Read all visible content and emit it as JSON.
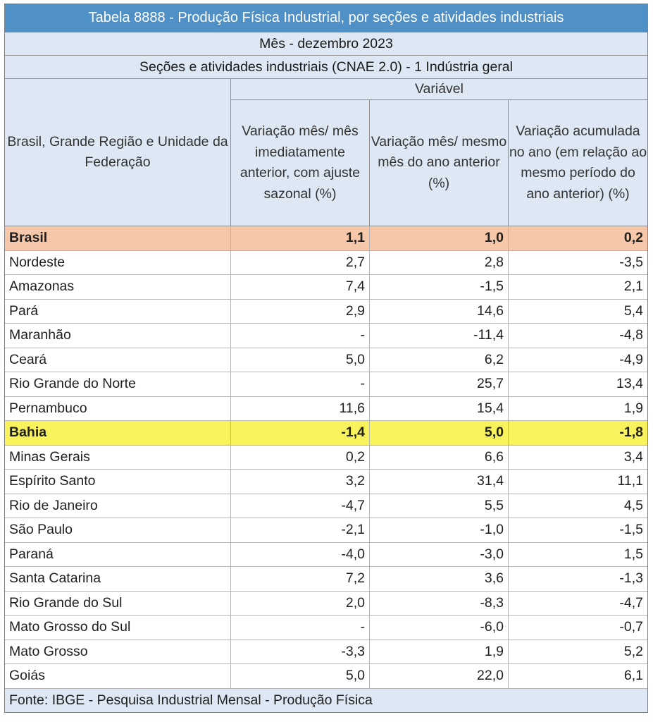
{
  "table": {
    "title": "Tabela 8888 - Produção Física Industrial, por seções e atividades industriais",
    "mes": "Mês - dezembro 2023",
    "secoes": "Seções e atividades industriais (CNAE 2.0) - 1 Indústria geral",
    "row_header": "Brasil, Grande Região e Unidade da Federação",
    "variable_header": "Variável",
    "col_headers": [
      "Variação mês/ mês imediatamente anterior, com ajuste sazonal (%)",
      "Variação mês/ mesmo mês do ano anterior (%)",
      "Variação acumulada no ano (em relação ao mesmo período do ano anterior) (%)"
    ],
    "footer": "Fonte: IBGE - Pesquisa Industrial Mensal - Produção Física"
  },
  "chart_data": {
    "type": "table",
    "title": "Tabela 8888 - Produção Física Industrial, por seções e atividades industriais",
    "columns": [
      "Brasil, Grande Região e Unidade da Federação",
      "Variação mês/ mês imediatamente anterior, com ajuste sazonal (%)",
      "Variação mês/ mesmo mês do ano anterior (%)",
      "Variação acumulada no ano (em relação ao mesmo período do ano anterior) (%)"
    ],
    "rows": [
      {
        "name": "Brasil",
        "v1": "1,1",
        "v2": "1,0",
        "v3": "0,2"
      },
      {
        "name": "Nordeste",
        "v1": "2,7",
        "v2": "2,8",
        "v3": "-3,5"
      },
      {
        "name": "Amazonas",
        "v1": "7,4",
        "v2": "-1,5",
        "v3": "2,1"
      },
      {
        "name": "Pará",
        "v1": "2,9",
        "v2": "14,6",
        "v3": "5,4"
      },
      {
        "name": "Maranhão",
        "v1": "-",
        "v2": "-11,4",
        "v3": "-4,8"
      },
      {
        "name": "Ceará",
        "v1": "5,0",
        "v2": "6,2",
        "v3": "-4,9"
      },
      {
        "name": "Rio Grande do Norte",
        "v1": "-",
        "v2": "25,7",
        "v3": "13,4"
      },
      {
        "name": "Pernambuco",
        "v1": "11,6",
        "v2": "15,4",
        "v3": "1,9"
      },
      {
        "name": "Bahia",
        "v1": "-1,4",
        "v2": "5,0",
        "v3": "-1,8"
      },
      {
        "name": "Minas Gerais",
        "v1": "0,2",
        "v2": "6,6",
        "v3": "3,4"
      },
      {
        "name": "Espírito Santo",
        "v1": "3,2",
        "v2": "31,4",
        "v3": "11,1"
      },
      {
        "name": "Rio de Janeiro",
        "v1": "-4,7",
        "v2": "5,5",
        "v3": "4,5"
      },
      {
        "name": "São Paulo",
        "v1": "-2,1",
        "v2": "-1,0",
        "v3": "-1,5"
      },
      {
        "name": "Paraná",
        "v1": "-4,0",
        "v2": "-3,0",
        "v3": "1,5"
      },
      {
        "name": "Santa Catarina",
        "v1": "7,2",
        "v2": "3,6",
        "v3": "-1,3"
      },
      {
        "name": "Rio Grande do Sul",
        "v1": "2,0",
        "v2": "-8,3",
        "v3": "-4,7"
      },
      {
        "name": "Mato Grosso do Sul",
        "v1": "-",
        "v2": "-6,0",
        "v3": "-0,7"
      },
      {
        "name": "Mato Grosso",
        "v1": "-3,3",
        "v2": "1,9",
        "v3": "5,2"
      },
      {
        "name": "Goiás",
        "v1": "5,0",
        "v2": "22,0",
        "v3": "6,1"
      }
    ],
    "highlighted_rows": [
      "Brasil",
      "Bahia"
    ],
    "colors": {
      "title_bg": "#4f90c7",
      "header_bg": "#dde8f4",
      "brasil_row": "#f6c7a8",
      "bahia_row": "#f8f25c"
    }
  }
}
